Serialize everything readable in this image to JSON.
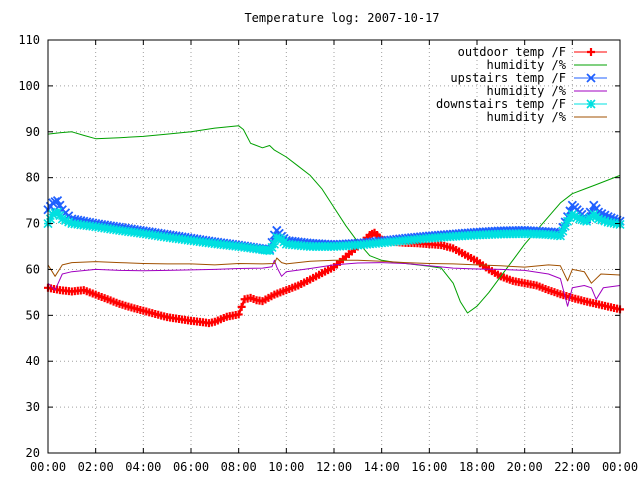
{
  "chart_data": {
    "type": "line",
    "title": "Temperature log: 2007-10-17",
    "xlabel": "",
    "ylabel": "",
    "x_unit": "hours",
    "xlim": [
      0,
      24
    ],
    "ylim": [
      20,
      110
    ],
    "x_ticks": [
      "00:00",
      "02:00",
      "04:00",
      "06:00",
      "08:00",
      "10:00",
      "12:00",
      "14:00",
      "16:00",
      "18:00",
      "20:00",
      "22:00",
      "00:00"
    ],
    "y_ticks": [
      "20",
      "30",
      "40",
      "50",
      "60",
      "70",
      "80",
      "90",
      "100",
      "110"
    ],
    "grid": true,
    "legend_position": "top-right",
    "series": [
      {
        "name": "outdoor temp /F",
        "color": "#ff0000",
        "marker": "plus",
        "points": [
          [
            0,
            56
          ],
          [
            0.5,
            55.5
          ],
          [
            1,
            55.2
          ],
          [
            1.5,
            55.5
          ],
          [
            2,
            54.5
          ],
          [
            2.5,
            53.5
          ],
          [
            3,
            52.5
          ],
          [
            3.5,
            51.7
          ],
          [
            4,
            51
          ],
          [
            4.5,
            50.3
          ],
          [
            5,
            49.6
          ],
          [
            5.5,
            49.2
          ],
          [
            6,
            48.8
          ],
          [
            6.5,
            48.5
          ],
          [
            6.75,
            48.3
          ],
          [
            7,
            48.6
          ],
          [
            7.5,
            49.7
          ],
          [
            8,
            50.2
          ],
          [
            8.25,
            53.5
          ],
          [
            8.5,
            53.8
          ],
          [
            8.75,
            53.3
          ],
          [
            9,
            53.1
          ],
          [
            9.5,
            54.5
          ],
          [
            10,
            55.5
          ],
          [
            10.5,
            56.5
          ],
          [
            11,
            57.8
          ],
          [
            11.5,
            59.2
          ],
          [
            12,
            60.5
          ],
          [
            12.5,
            62.8
          ],
          [
            13,
            65
          ],
          [
            13.5,
            67.5
          ],
          [
            13.7,
            68
          ],
          [
            14,
            66.5
          ],
          [
            14.5,
            66
          ],
          [
            15,
            65.8
          ],
          [
            15.5,
            65.7
          ],
          [
            16,
            65.5
          ],
          [
            16.5,
            65.3
          ],
          [
            17,
            64.6
          ],
          [
            17.5,
            63.2
          ],
          [
            18,
            61.8
          ],
          [
            18.5,
            60
          ],
          [
            19,
            58.5
          ],
          [
            19.5,
            57.5
          ],
          [
            20,
            57
          ],
          [
            20.5,
            56.5
          ],
          [
            21,
            55.5
          ],
          [
            21.5,
            54.6
          ],
          [
            22,
            53.8
          ],
          [
            22.5,
            53.1
          ],
          [
            23,
            52.5
          ],
          [
            23.5,
            51.9
          ],
          [
            24,
            51.3
          ]
        ]
      },
      {
        "name": "humidity /%",
        "color": "#00a000",
        "marker": "none",
        "points": [
          [
            0,
            89.5
          ],
          [
            0.5,
            89.8
          ],
          [
            1,
            90
          ],
          [
            1.5,
            89.2
          ],
          [
            2,
            88.5
          ],
          [
            3,
            88.7
          ],
          [
            4,
            89
          ],
          [
            5,
            89.5
          ],
          [
            6,
            90
          ],
          [
            7,
            90.8
          ],
          [
            8,
            91.3
          ],
          [
            8.2,
            90.5
          ],
          [
            8.5,
            87.5
          ],
          [
            9,
            86.5
          ],
          [
            9.3,
            87
          ],
          [
            9.5,
            86
          ],
          [
            10,
            84.5
          ],
          [
            10.5,
            82.5
          ],
          [
            11,
            80.5
          ],
          [
            11.5,
            77.5
          ],
          [
            12,
            73.5
          ],
          [
            12.5,
            69.5
          ],
          [
            13,
            66
          ],
          [
            13.5,
            63
          ],
          [
            14,
            62
          ],
          [
            14.5,
            61.6
          ],
          [
            15,
            61.3
          ],
          [
            15.5,
            61
          ],
          [
            16,
            60.7
          ],
          [
            16.5,
            60.3
          ],
          [
            17,
            57
          ],
          [
            17.3,
            53
          ],
          [
            17.6,
            50.5
          ],
          [
            18,
            52
          ],
          [
            18.5,
            55
          ],
          [
            19,
            58.5
          ],
          [
            19.5,
            62
          ],
          [
            20,
            65.5
          ],
          [
            20.5,
            68.5
          ],
          [
            21,
            71.5
          ],
          [
            21.5,
            74.5
          ],
          [
            22,
            76.5
          ],
          [
            22.5,
            77.5
          ],
          [
            23,
            78.5
          ],
          [
            23.5,
            79.5
          ],
          [
            24,
            80.5
          ]
        ]
      },
      {
        "name": "upstairs temp /F",
        "color": "#2060ff",
        "marker": "x",
        "points": [
          [
            0,
            73
          ],
          [
            0.2,
            74.5
          ],
          [
            0.4,
            75
          ],
          [
            0.6,
            73
          ],
          [
            1,
            71
          ],
          [
            2,
            70
          ],
          [
            3,
            69.2
          ],
          [
            4,
            68.4
          ],
          [
            5,
            67.6
          ],
          [
            6,
            66.8
          ],
          [
            7,
            66
          ],
          [
            8,
            65.3
          ],
          [
            9,
            64.5
          ],
          [
            9.3,
            64.3
          ],
          [
            9.5,
            67.5
          ],
          [
            9.6,
            68.5
          ],
          [
            9.8,
            67.2
          ],
          [
            10,
            66.3
          ],
          [
            11,
            65.7
          ],
          [
            12,
            65.4
          ],
          [
            13,
            65.7
          ],
          [
            14,
            66.2
          ],
          [
            15,
            66.8
          ],
          [
            16,
            67.3
          ],
          [
            17,
            67.7
          ],
          [
            18,
            68.1
          ],
          [
            19,
            68.4
          ],
          [
            20,
            68.5
          ],
          [
            21,
            68.2
          ],
          [
            21.5,
            68
          ],
          [
            21.8,
            71.5
          ],
          [
            22,
            74
          ],
          [
            22.3,
            72.5
          ],
          [
            22.6,
            71
          ],
          [
            22.9,
            74
          ],
          [
            23.1,
            72.5
          ],
          [
            23.5,
            71.5
          ],
          [
            24,
            70.5
          ]
        ]
      },
      {
        "name": "humidity /%",
        "color": "#a000c0",
        "marker": "none",
        "points": [
          [
            0,
            57
          ],
          [
            0.3,
            55.5
          ],
          [
            0.6,
            59
          ],
          [
            1,
            59.5
          ],
          [
            2,
            60
          ],
          [
            3,
            59.8
          ],
          [
            4,
            59.7
          ],
          [
            5,
            59.8
          ],
          [
            6,
            59.9
          ],
          [
            7,
            60
          ],
          [
            8,
            60.2
          ],
          [
            9,
            60.3
          ],
          [
            9.4,
            60.6
          ],
          [
            9.5,
            62
          ],
          [
            9.6,
            60.5
          ],
          [
            9.8,
            58.5
          ],
          [
            10,
            59.5
          ],
          [
            11,
            60.2
          ],
          [
            12,
            61
          ],
          [
            13,
            61.4
          ],
          [
            14,
            61.5
          ],
          [
            15,
            61.3
          ],
          [
            16,
            60.8
          ],
          [
            17,
            60.3
          ],
          [
            18,
            60.1
          ],
          [
            19,
            60
          ],
          [
            20,
            59.8
          ],
          [
            21,
            59
          ],
          [
            21.5,
            58
          ],
          [
            21.8,
            52
          ],
          [
            22,
            56
          ],
          [
            22.5,
            56.5
          ],
          [
            22.8,
            56
          ],
          [
            23,
            53.5
          ],
          [
            23.3,
            56
          ],
          [
            24,
            56.5
          ]
        ]
      },
      {
        "name": "downstairs temp /F",
        "color": "#00e0e0",
        "marker": "star",
        "points": [
          [
            0,
            70
          ],
          [
            0.2,
            72
          ],
          [
            0.4,
            72.5
          ],
          [
            0.6,
            71
          ],
          [
            1,
            70
          ],
          [
            2,
            69.3
          ],
          [
            3,
            68.5
          ],
          [
            4,
            67.8
          ],
          [
            5,
            67
          ],
          [
            6,
            66.3
          ],
          [
            7,
            65.6
          ],
          [
            8,
            65
          ],
          [
            9,
            64.3
          ],
          [
            9.3,
            64.1
          ],
          [
            9.5,
            65.5
          ],
          [
            9.6,
            67
          ],
          [
            9.8,
            66.5
          ],
          [
            10,
            65.5
          ],
          [
            11,
            65
          ],
          [
            12,
            65
          ],
          [
            13,
            65.3
          ],
          [
            14,
            65.8
          ],
          [
            15,
            66.3
          ],
          [
            16,
            66.8
          ],
          [
            17,
            67.2
          ],
          [
            18,
            67.5
          ],
          [
            19,
            67.7
          ],
          [
            20,
            67.8
          ],
          [
            21,
            67.6
          ],
          [
            21.5,
            67.3
          ],
          [
            21.8,
            70.5
          ],
          [
            22,
            72
          ],
          [
            22.3,
            71
          ],
          [
            22.6,
            70.5
          ],
          [
            22.9,
            72
          ],
          [
            23.1,
            71
          ],
          [
            23.5,
            70.3
          ],
          [
            24,
            69.8
          ]
        ]
      },
      {
        "name": "humidity /%",
        "color": "#a05000",
        "marker": "none",
        "points": [
          [
            0,
            61
          ],
          [
            0.3,
            58.5
          ],
          [
            0.6,
            61
          ],
          [
            1,
            61.5
          ],
          [
            2,
            61.7
          ],
          [
            3,
            61.5
          ],
          [
            4,
            61.3
          ],
          [
            5,
            61.2
          ],
          [
            6,
            61.2
          ],
          [
            7,
            61
          ],
          [
            8,
            61.3
          ],
          [
            9,
            61.2
          ],
          [
            9.5,
            61.3
          ],
          [
            9.6,
            62.5
          ],
          [
            9.8,
            61.5
          ],
          [
            10,
            61.2
          ],
          [
            11,
            61.8
          ],
          [
            12,
            62
          ],
          [
            13,
            62
          ],
          [
            14,
            61.8
          ],
          [
            15,
            61.5
          ],
          [
            16,
            61.3
          ],
          [
            17,
            61.2
          ],
          [
            18,
            61
          ],
          [
            19,
            60.8
          ],
          [
            20,
            60.5
          ],
          [
            21,
            61
          ],
          [
            21.5,
            60.8
          ],
          [
            21.8,
            57.5
          ],
          [
            22,
            60
          ],
          [
            22.5,
            59.5
          ],
          [
            22.8,
            57
          ],
          [
            23.2,
            59
          ],
          [
            24,
            58.8
          ]
        ]
      }
    ]
  }
}
